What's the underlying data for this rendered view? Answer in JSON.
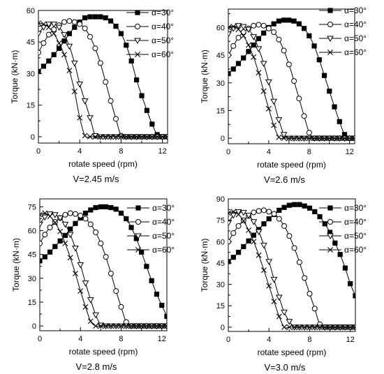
{
  "chart_data": [
    {
      "type": "line",
      "caption": "V=2.45 m/s",
      "xlabel": "rotate speed (rpm)",
      "ylabel": "Torque  (kN·m)",
      "xlim": [
        0,
        12.5
      ],
      "ylim": [
        -3,
        60
      ],
      "xticks": [
        0,
        4,
        8,
        12
      ],
      "yticks": [
        0,
        15,
        30,
        45,
        60
      ],
      "legend_position": "top-right",
      "series": [
        {
          "name": "α=30°",
          "marker": "square",
          "x": [
            0,
            0.5,
            1,
            1.5,
            2,
            2.5,
            3,
            3.5,
            4,
            4.5,
            5,
            5.5,
            6,
            6.5,
            7,
            7.5,
            8,
            8.5,
            9,
            9.5,
            10,
            10.5,
            11,
            11.5,
            12,
            12.5
          ],
          "y": [
            31,
            33.5,
            36,
            39,
            42,
            45.5,
            49,
            52,
            54.5,
            56.5,
            57,
            57,
            57,
            56.5,
            55,
            52.5,
            49,
            43.5,
            36,
            27,
            19.5,
            12.5,
            6,
            1,
            0,
            0
          ]
        },
        {
          "name": "α=40°",
          "marker": "circle",
          "x": [
            0,
            0.5,
            1,
            1.5,
            2,
            2.5,
            3,
            3.5,
            4,
            4.5,
            5,
            5.5,
            6,
            6.5,
            7,
            7.5,
            8,
            8.5,
            9,
            9.5,
            10,
            10.5,
            11,
            11.5,
            12,
            12.5
          ],
          "y": [
            40,
            44.5,
            48.5,
            51,
            53,
            54.5,
            55,
            54.5,
            53.5,
            51.5,
            47.5,
            42,
            35,
            26,
            17,
            8.5,
            0.5,
            0,
            0,
            0,
            0,
            0,
            0,
            0,
            0,
            0
          ]
        },
        {
          "name": "α=50°",
          "marker": "triangle-down",
          "x": [
            0,
            0.5,
            1,
            1.5,
            2,
            2.5,
            3,
            3.5,
            4,
            4.5,
            5,
            5.5,
            6,
            6.5,
            7,
            7.5,
            8,
            8.5,
            9,
            9.5,
            10,
            10.5,
            11,
            11.5,
            12,
            12.5
          ],
          "y": [
            49,
            52,
            53.5,
            53.5,
            52,
            48.5,
            43,
            35,
            25,
            17,
            9,
            0.5,
            0,
            0,
            0,
            0,
            0,
            0,
            0,
            0,
            0,
            0,
            0,
            0,
            0,
            0
          ]
        },
        {
          "name": "α=60°",
          "marker": "cross",
          "x": [
            0,
            0.5,
            1,
            1.5,
            2,
            2.5,
            3,
            3.5,
            4,
            4.5,
            5,
            5.5,
            6,
            6.5,
            7,
            7.5,
            8,
            8.5,
            9,
            9.5,
            10,
            10.5,
            11,
            11.5,
            12,
            12.5
          ],
          "y": [
            54,
            53.5,
            52,
            49,
            44.5,
            39,
            31.5,
            21.5,
            9,
            0.5,
            0,
            0,
            0,
            0,
            0,
            0,
            0,
            0,
            0,
            0,
            0,
            0,
            0,
            0,
            0,
            0
          ]
        }
      ]
    },
    {
      "type": "line",
      "caption": "V=2.6 m/s",
      "xlabel": "rotate speed (rpm)",
      "ylabel": "Torque  (kN·m)",
      "xlim": [
        0,
        12.5
      ],
      "ylim": [
        -3,
        70
      ],
      "xticks": [
        0,
        4,
        8,
        12
      ],
      "yticks": [
        0,
        15,
        30,
        45,
        60
      ],
      "legend_position": "top-right",
      "series": [
        {
          "name": "α=30°",
          "marker": "square",
          "x": [
            0,
            0.5,
            1,
            1.5,
            2,
            2.5,
            3,
            3.5,
            4,
            4.5,
            5,
            5.5,
            6,
            6.5,
            7,
            7.5,
            8,
            8.5,
            9,
            9.5,
            10,
            10.5,
            11,
            11.5,
            12,
            12.5
          ],
          "y": [
            35,
            37.5,
            40.5,
            43.5,
            47,
            50.5,
            54,
            57,
            60,
            62,
            63.5,
            64,
            64,
            63.5,
            62,
            59.5,
            55.5,
            50,
            42.5,
            34,
            25.5,
            17,
            9,
            2,
            0,
            0
          ]
        },
        {
          "name": "α=40°",
          "marker": "circle",
          "x": [
            0,
            0.5,
            1,
            1.5,
            2,
            2.5,
            3,
            3.5,
            4,
            4.5,
            5,
            5.5,
            6,
            6.5,
            7,
            7.5,
            8,
            8.5,
            9,
            9.5,
            10,
            10.5,
            11,
            11.5,
            12,
            12.5
          ],
          "y": [
            45,
            50,
            54.5,
            57.5,
            59.5,
            61,
            61.5,
            61,
            59.5,
            57.5,
            53.5,
            47.5,
            40,
            31,
            21.5,
            12,
            3,
            0,
            0,
            0,
            0,
            0,
            0,
            0,
            0,
            0
          ]
        },
        {
          "name": "α=50°",
          "marker": "triangle-down",
          "x": [
            0,
            0.5,
            1,
            1.5,
            2,
            2.5,
            3,
            3.5,
            4,
            4.5,
            5,
            5.5,
            6,
            6.5,
            7,
            7.5,
            8,
            8.5,
            9,
            9.5,
            10,
            10.5,
            11,
            11.5,
            12,
            12.5
          ],
          "y": [
            56.5,
            59.5,
            61,
            60.5,
            59,
            55,
            48.5,
            40.5,
            30.5,
            20,
            10,
            2,
            0,
            0,
            0,
            0,
            0,
            0,
            0,
            0,
            0,
            0,
            0,
            0,
            0,
            0
          ]
        },
        {
          "name": "α=60°",
          "marker": "cross",
          "x": [
            0,
            0.5,
            1,
            1.5,
            2,
            2.5,
            3,
            3.5,
            4,
            4.5,
            5,
            5.5,
            6,
            6.5,
            7,
            7.5,
            8,
            8.5,
            9,
            9.5,
            10,
            10.5,
            11,
            11.5,
            12,
            12.5
          ],
          "y": [
            60,
            60.5,
            59,
            55.5,
            50.5,
            44,
            35.5,
            25.5,
            16,
            7,
            0.5,
            0,
            0,
            0,
            0,
            0,
            0,
            0,
            0,
            0,
            0,
            0,
            0,
            0,
            0,
            0
          ]
        }
      ]
    },
    {
      "type": "line",
      "caption": "V=2.8 m/s",
      "xlabel": "rotate speed (rpm)",
      "ylabel": "Torque  (kN·m)",
      "xlim": [
        0,
        12.5
      ],
      "ylim": [
        -3,
        80
      ],
      "xticks": [
        0,
        4,
        8,
        12
      ],
      "yticks": [
        0,
        15,
        30,
        45,
        60,
        75
      ],
      "legend_position": "top-right",
      "series": [
        {
          "name": "α=30°",
          "marker": "square",
          "x": [
            0,
            0.5,
            1,
            1.5,
            2,
            2.5,
            3,
            3.5,
            4,
            4.5,
            5,
            5.5,
            6,
            6.5,
            7,
            7.5,
            8,
            8.5,
            9,
            9.5,
            10,
            10.5,
            11,
            11.5,
            12,
            12.5
          ],
          "y": [
            41,
            43.5,
            46.5,
            50,
            53.5,
            57,
            61,
            64.5,
            68,
            71,
            73,
            74.5,
            75,
            75,
            74.5,
            73.5,
            71,
            67.5,
            62,
            55,
            46.5,
            37.5,
            28.5,
            20,
            13,
            6
          ]
        },
        {
          "name": "α=40°",
          "marker": "circle",
          "x": [
            0,
            0.5,
            1,
            1.5,
            2,
            2.5,
            3,
            3.5,
            4,
            4.5,
            5,
            5.5,
            6,
            6.5,
            7,
            7.5,
            8,
            8.5,
            9,
            9.5,
            10,
            10.5,
            11,
            11.5,
            12,
            12.5
          ],
          "y": [
            52,
            57.5,
            62,
            65.5,
            68,
            70,
            71,
            70.5,
            69.5,
            67.5,
            64,
            59,
            52,
            43.5,
            33,
            22,
            12,
            2.5,
            0,
            0,
            0,
            0,
            0,
            0,
            0,
            0
          ]
        },
        {
          "name": "α=50°",
          "marker": "triangle-down",
          "x": [
            0,
            0.5,
            1,
            1.5,
            2,
            2.5,
            3,
            3.5,
            4,
            4.5,
            5,
            5.5,
            6,
            6.5,
            7,
            7.5,
            8,
            8.5,
            9,
            9.5,
            10,
            10.5,
            11,
            11.5,
            12,
            12.5
          ],
          "y": [
            64,
            68.5,
            70.5,
            70,
            68,
            64,
            57.5,
            49,
            38.5,
            27,
            16.5,
            7,
            0.5,
            0,
            0,
            0,
            0,
            0,
            0,
            0,
            0,
            0,
            0,
            0,
            0,
            0
          ]
        },
        {
          "name": "α=60°",
          "marker": "cross",
          "x": [
            0,
            0.5,
            1,
            1.5,
            2,
            2.5,
            3,
            3.5,
            4,
            4.5,
            5,
            5.5,
            6,
            6.5,
            7,
            7.5,
            8,
            8.5,
            9,
            9.5,
            10,
            10.5,
            11,
            11.5,
            12,
            12.5
          ],
          "y": [
            70,
            71,
            69,
            65,
            59.5,
            52,
            43,
            33,
            22,
            12,
            3,
            0,
            0,
            0,
            0,
            0,
            0,
            0,
            0,
            0,
            0,
            0,
            0,
            0,
            0,
            0
          ]
        }
      ]
    },
    {
      "type": "line",
      "caption": "V=3.0 m/s",
      "xlabel": "rotate speed (rpm)",
      "ylabel": "Torque  (kN·m)",
      "xlim": [
        0,
        12.5
      ],
      "ylim": [
        -3,
        90
      ],
      "xticks": [
        0,
        4,
        8,
        12
      ],
      "yticks": [
        0,
        15,
        30,
        45,
        60,
        75,
        90
      ],
      "legend_position": "top-right",
      "series": [
        {
          "name": "α=30°",
          "marker": "square",
          "x": [
            0,
            0.5,
            1,
            1.5,
            2,
            2.5,
            3,
            3.5,
            4,
            4.5,
            5,
            5.5,
            6,
            6.5,
            7,
            7.5,
            8,
            8.5,
            9,
            9.5,
            10,
            10.5,
            11,
            11.5,
            12,
            12.5
          ],
          "y": [
            46,
            49,
            52.5,
            56.5,
            60.5,
            64.5,
            68.5,
            72.5,
            76,
            79,
            82,
            84,
            85.5,
            86,
            86,
            85,
            83.5,
            81,
            77.5,
            72.5,
            66.5,
            59,
            51,
            41.5,
            30.5,
            22
          ]
        },
        {
          "name": "α=40°",
          "marker": "circle",
          "x": [
            0,
            0.5,
            1,
            1.5,
            2,
            2.5,
            3,
            3.5,
            4,
            4.5,
            5,
            5.5,
            6,
            6.5,
            7,
            7.5,
            8,
            8.5,
            9,
            9.5,
            10,
            10.5,
            11,
            11.5,
            12,
            12.5
          ],
          "y": [
            60,
            66,
            71,
            75,
            78,
            80.5,
            81.5,
            82,
            81,
            79.5,
            76,
            71,
            64,
            55.5,
            45.5,
            34.5,
            23.5,
            13,
            2,
            0,
            0,
            0,
            0,
            0,
            0,
            0
          ]
        },
        {
          "name": "α=50°",
          "marker": "triangle-down",
          "x": [
            0,
            0.5,
            1,
            1.5,
            2,
            2.5,
            3,
            3.5,
            4,
            4.5,
            5,
            5.5,
            6,
            6.5,
            7,
            7.5,
            8,
            8.5,
            9,
            9.5,
            10,
            10.5,
            11,
            11.5,
            12,
            12.5
          ],
          "y": [
            73,
            78.5,
            81,
            80.5,
            78.5,
            74,
            67,
            57.5,
            46,
            33.5,
            21,
            10.5,
            4,
            0,
            0,
            0,
            0,
            0,
            0,
            0,
            0,
            0,
            0,
            0,
            0,
            0
          ]
        },
        {
          "name": "α=60°",
          "marker": "cross",
          "x": [
            0,
            0.5,
            1,
            1.5,
            2,
            2.5,
            3,
            3.5,
            4,
            4.5,
            5,
            5.5,
            6,
            6.5,
            7,
            7.5,
            8,
            8.5,
            9,
            9.5,
            10,
            10.5,
            11,
            11.5,
            12,
            12.5
          ],
          "y": [
            80,
            81,
            79,
            74.5,
            68,
            60,
            50.5,
            40,
            29,
            18,
            7.5,
            0,
            0,
            0,
            0,
            0,
            0,
            0,
            0,
            0,
            0,
            0,
            0,
            0,
            0,
            0
          ]
        }
      ]
    }
  ]
}
